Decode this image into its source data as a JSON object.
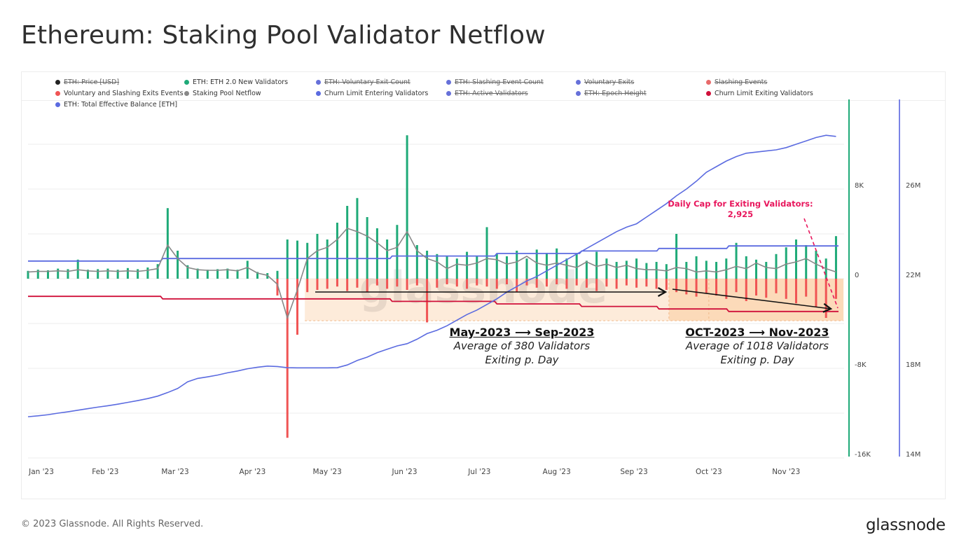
{
  "header": {
    "title": "Ethereum: Staking Pool Validator Netflow"
  },
  "footer": {
    "copyright": "© 2023 Glassnode. All Rights Reserved.",
    "logo": "glassnode"
  },
  "legend": [
    {
      "label": "ETH: Price [USD]",
      "color": "#222222",
      "enabled": false
    },
    {
      "label": "ETH: ETH 2.0 New Validators",
      "color": "#1faa78",
      "enabled": true
    },
    {
      "label": "ETH: Voluntary Exit Count",
      "color": "#6670d9",
      "enabled": false
    },
    {
      "label": "ETH: Slashing Event Count",
      "color": "#6670d9",
      "enabled": false
    },
    {
      "label": "Voluntary Exits",
      "color": "#6670d9",
      "enabled": false
    },
    {
      "label": "Slashing Events",
      "color": "#e86a6a",
      "enabled": false
    },
    {
      "label": "Voluntary and Slashing Exits Events",
      "color": "#f05454",
      "enabled": true
    },
    {
      "label": "Staking Pool Netflow",
      "color": "#888888",
      "enabled": true
    },
    {
      "label": "Churn Limit Entering Validators",
      "color": "#5b6be0",
      "enabled": true
    },
    {
      "label": "ETH: Active Validators",
      "color": "#6670d9",
      "enabled": false
    },
    {
      "label": "ETH: Epoch Height",
      "color": "#6670d9",
      "enabled": false
    },
    {
      "label": "Churn Limit Exiting Validators",
      "color": "#d0103a",
      "enabled": true
    },
    {
      "label": "ETH: Total Effective Balance [ETH]",
      "color": "#5b6be0",
      "enabled": true
    }
  ],
  "annotations": {
    "period1": {
      "heading": "May-2023 ⟶ Sep-2023",
      "line1": "Average of 380 Validators",
      "line2": "Exiting p. Day",
      "from": "2023-04-22",
      "to": "2023-09-15",
      "shade": "#fde7d3"
    },
    "period2": {
      "heading": "OCT-2023 ⟶ Nov-2023",
      "line1": "Average of 1018 Validators",
      "line2": "Exiting p. Day",
      "from": "2023-09-15",
      "to": "2023-11-24",
      "shade": "#fbd3ad"
    },
    "cap": {
      "line1": "Daily Cap for Exiting Validators:",
      "line2": "2,925",
      "color": "#e8175d"
    },
    "watermark": "glassnode"
  },
  "chart_data": {
    "type": "bar+line",
    "title": "Ethereum: Staking Pool Validator Netflow",
    "grid": true,
    "legend_position": "top",
    "x_ticks": [
      {
        "label": "Jan '23",
        "date": "2023-01-01"
      },
      {
        "label": "Feb '23",
        "date": "2023-02-01"
      },
      {
        "label": "Mar '23",
        "date": "2023-03-01"
      },
      {
        "label": "Apr '23",
        "date": "2023-04-01"
      },
      {
        "label": "May '23",
        "date": "2023-05-01"
      },
      {
        "label": "Jun '23",
        "date": "2023-06-01"
      },
      {
        "label": "Jul '23",
        "date": "2023-07-01"
      },
      {
        "label": "Aug '23",
        "date": "2023-08-01"
      },
      {
        "label": "Sep '23",
        "date": "2023-09-01"
      },
      {
        "label": "Oct '23",
        "date": "2023-10-01"
      },
      {
        "label": "Nov '23",
        "date": "2023-11-01"
      }
    ],
    "y_left": {
      "range": [
        -16000,
        16000
      ],
      "ticks": [
        {
          "label": "8K",
          "value": 8000
        },
        {
          "label": "0",
          "value": 0
        },
        {
          "label": "-8K",
          "value": -8000
        },
        {
          "label": "-16K",
          "value": -16000
        }
      ],
      "axis_color": "#1faa78"
    },
    "y_right": {
      "range": [
        14,
        30
      ],
      "unit": "M ETH",
      "ticks": [
        {
          "label": "26M",
          "value": 26
        },
        {
          "label": "22M",
          "value": 22
        },
        {
          "label": "18M",
          "value": 18
        },
        {
          "label": "14M",
          "value": 14
        }
      ],
      "axis_color": "#7a84e6"
    },
    "dates": [
      "2023-01-01",
      "2023-01-05",
      "2023-01-09",
      "2023-01-13",
      "2023-01-17",
      "2023-01-21",
      "2023-01-25",
      "2023-01-29",
      "2023-02-02",
      "2023-02-06",
      "2023-02-10",
      "2023-02-14",
      "2023-02-18",
      "2023-02-22",
      "2023-02-26",
      "2023-03-02",
      "2023-03-06",
      "2023-03-10",
      "2023-03-14",
      "2023-03-18",
      "2023-03-22",
      "2023-03-26",
      "2023-03-30",
      "2023-04-03",
      "2023-04-07",
      "2023-04-11",
      "2023-04-15",
      "2023-04-19",
      "2023-04-23",
      "2023-04-27",
      "2023-05-01",
      "2023-05-05",
      "2023-05-09",
      "2023-05-13",
      "2023-05-17",
      "2023-05-21",
      "2023-05-25",
      "2023-05-29",
      "2023-06-02",
      "2023-06-06",
      "2023-06-10",
      "2023-06-14",
      "2023-06-18",
      "2023-06-22",
      "2023-06-26",
      "2023-06-30",
      "2023-07-04",
      "2023-07-08",
      "2023-07-12",
      "2023-07-16",
      "2023-07-20",
      "2023-07-24",
      "2023-07-28",
      "2023-08-01",
      "2023-08-05",
      "2023-08-09",
      "2023-08-13",
      "2023-08-17",
      "2023-08-21",
      "2023-08-25",
      "2023-08-29",
      "2023-09-02",
      "2023-09-06",
      "2023-09-10",
      "2023-09-14",
      "2023-09-18",
      "2023-09-22",
      "2023-09-26",
      "2023-09-30",
      "2023-10-04",
      "2023-10-08",
      "2023-10-12",
      "2023-10-16",
      "2023-10-20",
      "2023-10-24",
      "2023-10-28",
      "2023-11-01",
      "2023-11-05",
      "2023-11-09",
      "2023-11-13",
      "2023-11-17",
      "2023-11-21"
    ],
    "series": [
      {
        "name": "ETH: ETH 2.0 New Validators",
        "kind": "bar",
        "axis": "left",
        "color": "#1faa78",
        "values": [
          700,
          800,
          750,
          900,
          850,
          1700,
          800,
          850,
          900,
          800,
          950,
          850,
          1000,
          1300,
          6300,
          2500,
          1200,
          900,
          800,
          850,
          900,
          800,
          1600,
          600,
          500,
          700,
          3500,
          3400,
          3200,
          4000,
          3500,
          5000,
          6500,
          7200,
          5500,
          4500,
          3500,
          4800,
          12800,
          3000,
          2500,
          2200,
          2000,
          1800,
          2400,
          2000,
          4600,
          2200,
          2000,
          2500,
          1800,
          2600,
          2300,
          2700,
          1800,
          2200,
          1600,
          2400,
          1800,
          1500,
          1600,
          1800,
          1400,
          1500,
          1300,
          4000,
          1500,
          2000,
          1600,
          1500,
          1800,
          3200,
          2000,
          1700,
          1500,
          2200,
          2800,
          3500,
          3000,
          2500,
          1800,
          3800
        ]
      },
      {
        "name": "Voluntary and Slashing Exits Events",
        "kind": "bar",
        "axis": "left",
        "color": "#f05454",
        "values": [
          0,
          0,
          0,
          0,
          0,
          0,
          0,
          0,
          0,
          0,
          0,
          0,
          0,
          0,
          0,
          0,
          0,
          0,
          0,
          0,
          0,
          0,
          0,
          0,
          0,
          -1500,
          -14200,
          -5000,
          -1200,
          -1000,
          -900,
          -700,
          -1100,
          -800,
          -1200,
          -600,
          -900,
          -700,
          -1000,
          -600,
          -3900,
          -800,
          -500,
          -700,
          -900,
          -600,
          -700,
          -900,
          -500,
          -1200,
          -600,
          -800,
          -700,
          -500,
          -900,
          -600,
          -800,
          -1100,
          -700,
          -900,
          -600,
          -800,
          -700,
          -900,
          -1000,
          -1200,
          -1400,
          -1600,
          -1300,
          -1500,
          -1800,
          -1200,
          -2000,
          -1500,
          -1700,
          -1300,
          -1800,
          -2200,
          -1600,
          -2500,
          -3500,
          -1800
        ]
      },
      {
        "name": "Staking Pool Netflow",
        "kind": "line",
        "axis": "left",
        "color": "#888888",
        "values": [
          600,
          650,
          650,
          700,
          650,
          800,
          700,
          650,
          700,
          650,
          700,
          650,
          750,
          900,
          3000,
          1800,
          1000,
          800,
          750,
          750,
          800,
          700,
          1000,
          500,
          300,
          -500,
          -3500,
          -1000,
          1800,
          2500,
          2800,
          3500,
          4500,
          4200,
          3800,
          3200,
          2500,
          2800,
          4200,
          2500,
          1800,
          1500,
          900,
          1300,
          1200,
          1400,
          1800,
          1700,
          1300,
          1500,
          2000,
          1400,
          1200,
          1400,
          1200,
          1000,
          1500,
          1100,
          1300,
          1000,
          1200,
          900,
          800,
          800,
          700,
          1000,
          900,
          600,
          700,
          600,
          800,
          1100,
          900,
          1400,
          1000,
          900,
          1300,
          1500,
          1800,
          1300,
          900,
          600
        ]
      },
      {
        "name": "ETH: Total Effective Balance [ETH]",
        "kind": "line",
        "axis": "right",
        "color": "#5b6be0",
        "values": [
          15.84,
          15.88,
          15.93,
          16.0,
          16.06,
          16.13,
          16.2,
          16.27,
          16.33,
          16.4,
          16.48,
          16.56,
          16.65,
          16.76,
          16.92,
          17.1,
          17.4,
          17.55,
          17.62,
          17.7,
          17.8,
          17.88,
          17.98,
          18.05,
          18.1,
          18.08,
          18.03,
          18.02,
          18.02,
          18.02,
          18.02,
          18.03,
          18.15,
          18.35,
          18.5,
          18.7,
          18.85,
          19.0,
          19.1,
          19.3,
          19.55,
          19.7,
          19.9,
          20.15,
          20.4,
          20.6,
          20.85,
          21.1,
          21.4,
          21.65,
          21.9,
          22.1,
          22.35,
          22.6,
          22.85,
          23.1,
          23.35,
          23.6,
          23.85,
          24.1,
          24.3,
          24.45,
          24.75,
          25.05,
          25.35,
          25.7,
          26.0,
          26.35,
          26.75,
          27.0,
          27.25,
          27.45,
          27.6,
          27.65,
          27.7,
          27.75,
          27.85,
          28.0,
          28.15,
          28.3,
          28.4,
          28.35
        ]
      },
      {
        "name": "Churn Limit Entering Validators",
        "kind": "step",
        "axis": "left",
        "color": "#5b6be0",
        "steps": [
          {
            "from": "2023-01-01",
            "value": 1575
          },
          {
            "from": "2023-02-24",
            "value": 1800
          },
          {
            "from": "2023-05-27",
            "value": 2025
          },
          {
            "from": "2023-07-08",
            "value": 2250
          },
          {
            "from": "2023-08-11",
            "value": 2475
          },
          {
            "from": "2023-09-11",
            "value": 2700
          },
          {
            "from": "2023-10-09",
            "value": 2925
          }
        ]
      },
      {
        "name": "Churn Limit Exiting Validators",
        "kind": "step",
        "axis": "left",
        "color": "#d0103a",
        "steps": [
          {
            "from": "2023-01-01",
            "value": -1575
          },
          {
            "from": "2023-02-24",
            "value": -1800
          },
          {
            "from": "2023-05-27",
            "value": -2025
          },
          {
            "from": "2023-07-08",
            "value": -2250
          },
          {
            "from": "2023-08-11",
            "value": -2475
          },
          {
            "from": "2023-09-11",
            "value": -2700
          },
          {
            "from": "2023-10-09",
            "value": -2925
          }
        ]
      }
    ],
    "end_date": "2023-11-22"
  }
}
